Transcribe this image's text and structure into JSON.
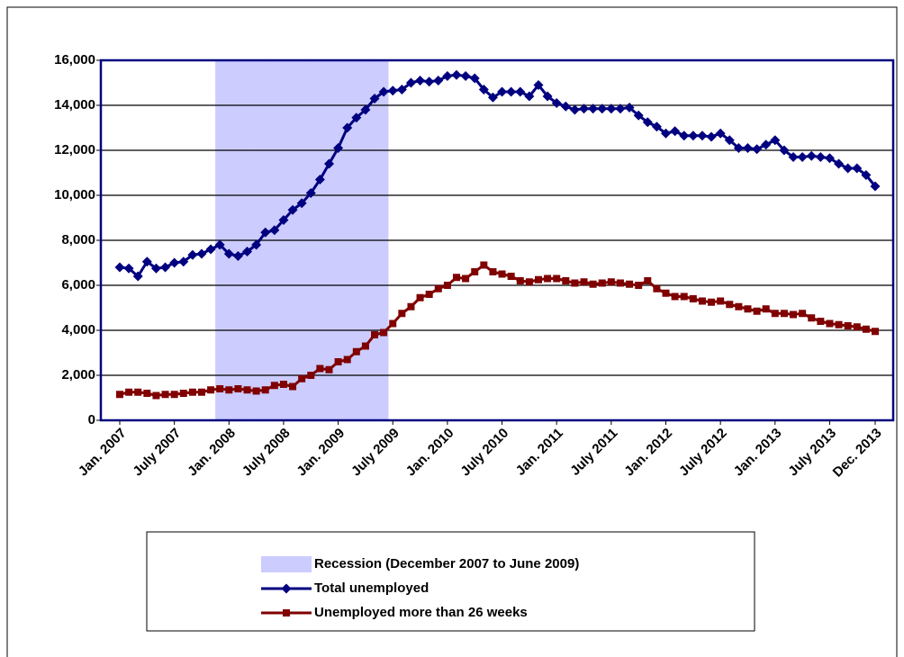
{
  "chart_data": {
    "type": "line",
    "categories": [
      "Jan. 2007",
      null,
      null,
      null,
      null,
      null,
      "July 2007",
      null,
      null,
      null,
      null,
      null,
      "Jan. 2008",
      null,
      null,
      null,
      null,
      null,
      "July 2008",
      null,
      null,
      null,
      null,
      null,
      "Jan. 2009",
      null,
      null,
      null,
      null,
      null,
      "July 2009",
      null,
      null,
      null,
      null,
      null,
      "Jan. 2010",
      null,
      null,
      null,
      null,
      null,
      "July 2010",
      null,
      null,
      null,
      null,
      null,
      "Jan. 2011",
      null,
      null,
      null,
      null,
      null,
      "July 2011",
      null,
      null,
      null,
      null,
      null,
      "Jan. 2012",
      null,
      null,
      null,
      null,
      null,
      "July 2012",
      null,
      null,
      null,
      null,
      null,
      "Jan. 2013",
      null,
      null,
      null,
      null,
      null,
      "July 2013",
      null,
      null,
      null,
      null,
      "Dec. 2013"
    ],
    "series": [
      {
        "name": "Recession (December 2007 to June 2009)",
        "type": "bar",
        "color": "#ccccff",
        "values": [
          null,
          null,
          null,
          null,
          null,
          null,
          null,
          null,
          null,
          null,
          null,
          16000,
          16000,
          16000,
          16000,
          16000,
          16000,
          16000,
          16000,
          16000,
          16000,
          16000,
          16000,
          16000,
          16000,
          16000,
          16000,
          16000,
          16000,
          16000,
          null,
          null,
          null,
          null,
          null,
          null,
          null,
          null,
          null,
          null,
          null,
          null,
          null,
          null,
          null,
          null,
          null,
          null,
          null,
          null,
          null,
          null,
          null,
          null,
          null,
          null,
          null,
          null,
          null,
          null,
          null,
          null,
          null,
          null,
          null,
          null,
          null,
          null,
          null,
          null,
          null,
          null,
          null,
          null,
          null,
          null,
          null,
          null,
          null,
          null,
          null,
          null,
          null,
          null
        ]
      },
      {
        "name": "Total unemployed",
        "type": "line",
        "marker": "diamond",
        "color": "#000080",
        "values": [
          6800,
          6750,
          6400,
          7050,
          6750,
          6800,
          7000,
          7050,
          7350,
          7400,
          7600,
          7800,
          7400,
          7300,
          7500,
          7800,
          8350,
          8450,
          8900,
          9350,
          9650,
          10100,
          10700,
          11400,
          12100,
          13000,
          13450,
          13800,
          14300,
          14600,
          14650,
          14700,
          15000,
          15100,
          15050,
          15100,
          15300,
          15350,
          15300,
          15200,
          14700,
          14350,
          14600,
          14600,
          14600,
          14400,
          14900,
          14400,
          14100,
          13950,
          13800,
          13850,
          13850,
          13850,
          13850,
          13850,
          13900,
          13550,
          13250,
          13050,
          12750,
          12850,
          12650,
          12650,
          12650,
          12600,
          12750,
          12450,
          12100,
          12100,
          12050,
          12250,
          12450,
          12000,
          11700,
          11700,
          11750,
          11700,
          11650,
          11400,
          11200,
          11200,
          10900,
          10400
        ]
      },
      {
        "name": "Unemployed more than 26 weeks",
        "type": "line",
        "marker": "square",
        "color": "#800000",
        "values": [
          1150,
          1250,
          1250,
          1200,
          1100,
          1150,
          1150,
          1200,
          1250,
          1250,
          1350,
          1400,
          1350,
          1400,
          1350,
          1300,
          1350,
          1550,
          1600,
          1500,
          1850,
          2000,
          2300,
          2250,
          2600,
          2700,
          3050,
          3300,
          3800,
          3900,
          4300,
          4750,
          5050,
          5450,
          5600,
          5850,
          6000,
          6350,
          6300,
          6600,
          6900,
          6600,
          6500,
          6400,
          6200,
          6150,
          6250,
          6300,
          6300,
          6200,
          6100,
          6150,
          6050,
          6100,
          6150,
          6100,
          6050,
          6000,
          6200,
          5850,
          5650,
          5500,
          5500,
          5400,
          5300,
          5250,
          5300,
          5150,
          5050,
          4950,
          4850,
          4950,
          4750,
          4750,
          4700,
          4750,
          4550,
          4400,
          4300,
          4250,
          4200,
          4150,
          4050,
          3950
        ]
      }
    ],
    "ylim": [
      0,
      16000
    ],
    "yticks": [
      0,
      {
        "value": 2000,
        "label": "2,000"
      },
      {
        "value": 4000,
        "label": "4,000"
      },
      {
        "value": 6000,
        "label": "6,000"
      },
      {
        "value": 8000,
        "label": "8,000"
      },
      {
        "value": 10000,
        "label": "10,000"
      },
      {
        "value": 12000,
        "label": "12,000"
      },
      {
        "value": 14000,
        "label": "14,000"
      },
      {
        "value": 16000,
        "label": "16,000"
      }
    ],
    "grid": true,
    "legend": "bottom"
  }
}
